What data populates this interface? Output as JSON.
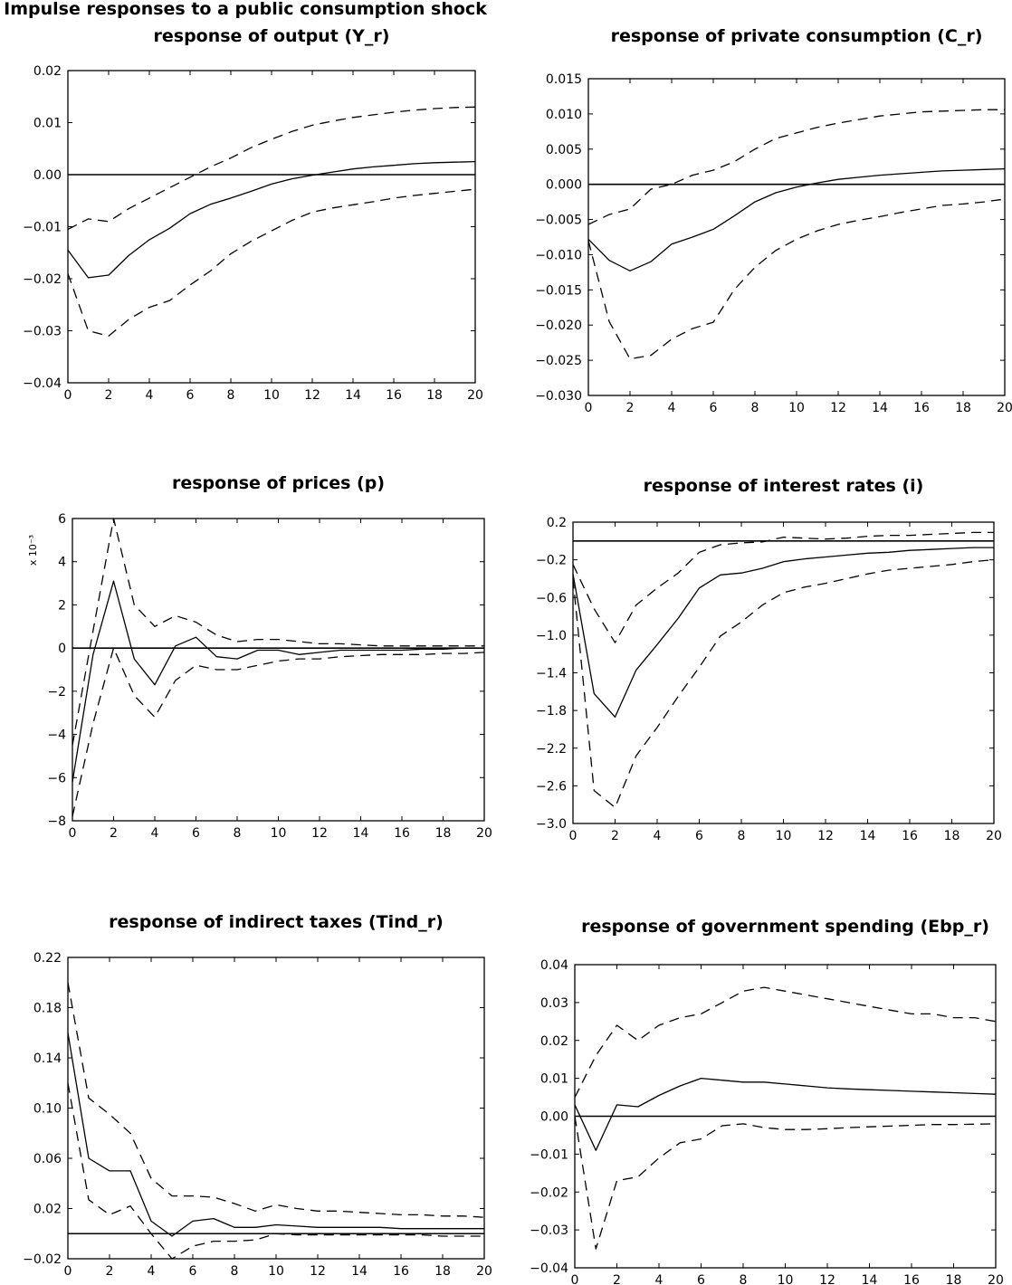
{
  "header_partial": "Impulse responses to a public consumption shock",
  "chart_data": [
    {
      "type": "line",
      "title": "response of output (Y_r)",
      "x": [
        0,
        1,
        2,
        3,
        4,
        5,
        6,
        7,
        8,
        9,
        10,
        11,
        12,
        13,
        14,
        15,
        16,
        17,
        18,
        19,
        20
      ],
      "xticks": [
        0,
        2,
        4,
        6,
        8,
        10,
        12,
        14,
        16,
        18,
        20
      ],
      "xlim": [
        0,
        20
      ],
      "ylim": [
        -0.04,
        0.02
      ],
      "yticks": [
        0.02,
        0.01,
        0.0,
        -0.01,
        -0.02,
        -0.03,
        -0.04
      ],
      "ytick_labels": [
        "0.02",
        "0.01",
        "0.00",
        "−0.01",
        "−0.02",
        "−0.03",
        "−0.04"
      ],
      "multiplier": "",
      "zero_line": 0,
      "series": [
        {
          "style": "solid",
          "values": [
            -0.0145,
            -0.0198,
            -0.0193,
            -0.0155,
            -0.0125,
            -0.0103,
            -0.0075,
            -0.0057,
            -0.0045,
            -0.0032,
            -0.0018,
            -0.0008,
            -0.0001,
            0.0005,
            0.0011,
            0.0015,
            0.0018,
            0.0021,
            0.0023,
            0.0024,
            0.0025
          ]
        },
        {
          "style": "dashed",
          "values": [
            -0.0105,
            -0.0085,
            -0.009,
            -0.0065,
            -0.0045,
            -0.0025,
            -0.0005,
            0.0015,
            0.0032,
            0.0052,
            0.0068,
            0.0083,
            0.0095,
            0.0103,
            0.011,
            0.0115,
            0.012,
            0.0124,
            0.0127,
            0.0129,
            0.013
          ]
        },
        {
          "style": "dashed",
          "values": [
            -0.019,
            -0.03,
            -0.031,
            -0.0278,
            -0.0255,
            -0.0242,
            -0.0212,
            -0.0185,
            -0.0152,
            -0.0128,
            -0.0108,
            -0.0088,
            -0.0072,
            -0.0064,
            -0.0058,
            -0.0052,
            -0.0045,
            -0.004,
            -0.0036,
            -0.0032,
            -0.0028
          ]
        }
      ]
    },
    {
      "type": "line",
      "title": "response of private consumption (C_r)",
      "x": [
        0,
        1,
        2,
        3,
        4,
        5,
        6,
        7,
        8,
        9,
        10,
        11,
        12,
        13,
        14,
        15,
        16,
        17,
        18,
        19,
        20
      ],
      "xticks": [
        0,
        2,
        4,
        6,
        8,
        10,
        12,
        14,
        16,
        18,
        20
      ],
      "xlim": [
        0,
        20
      ],
      "ylim": [
        -0.03,
        0.015
      ],
      "yticks": [
        0.015,
        0.01,
        0.005,
        0.0,
        -0.005,
        -0.01,
        -0.015,
        -0.02,
        -0.025,
        -0.03
      ],
      "ytick_labels": [
        "0.015",
        "0.010",
        "0.005",
        "0.000",
        "−0.005",
        "−0.010",
        "−0.015",
        "−0.020",
        "−0.025",
        "−0.030"
      ],
      "multiplier": "",
      "zero_line": 0,
      "series": [
        {
          "style": "solid",
          "values": [
            -0.0078,
            -0.0108,
            -0.0123,
            -0.011,
            -0.0085,
            -0.0075,
            -0.0064,
            -0.0045,
            -0.0025,
            -0.0012,
            -0.0004,
            0.0002,
            0.0007,
            0.001,
            0.0013,
            0.0015,
            0.0017,
            0.0019,
            0.002,
            0.0021,
            0.0022
          ]
        },
        {
          "style": "dashed",
          "values": [
            -0.0057,
            -0.0043,
            -0.0035,
            -0.0007,
            0.0,
            0.0013,
            0.002,
            0.0032,
            0.005,
            0.0065,
            0.0073,
            0.0081,
            0.0087,
            0.0092,
            0.0097,
            0.01,
            0.0103,
            0.0104,
            0.0105,
            0.0106,
            0.0106
          ]
        },
        {
          "style": "dashed",
          "values": [
            -0.008,
            -0.0195,
            -0.0248,
            -0.0243,
            -0.022,
            -0.0205,
            -0.0196,
            -0.015,
            -0.0118,
            -0.0094,
            -0.0078,
            -0.0066,
            -0.0057,
            -0.0051,
            -0.0046,
            -0.004,
            -0.0035,
            -0.003,
            -0.0028,
            -0.0025,
            -0.0021
          ]
        }
      ]
    },
    {
      "type": "line",
      "title": "response of prices (p)",
      "x": [
        0,
        1,
        2,
        3,
        4,
        5,
        6,
        7,
        8,
        9,
        10,
        11,
        12,
        13,
        14,
        15,
        16,
        17,
        18,
        19,
        20
      ],
      "xticks": [
        0,
        2,
        4,
        6,
        8,
        10,
        12,
        14,
        16,
        18,
        20
      ],
      "xlim": [
        0,
        20
      ],
      "ylim": [
        -8,
        6
      ],
      "yticks": [
        6,
        4,
        2,
        0,
        -2,
        -4,
        -6,
        -8
      ],
      "ytick_labels": [
        "6",
        "4",
        "2",
        "0",
        "−2",
        "−4",
        "−6",
        "−8"
      ],
      "multiplier": "x 10⁻³",
      "zero_line": 0,
      "series": [
        {
          "style": "solid",
          "values": [
            -6.2,
            -0.3,
            3.1,
            -0.5,
            -1.7,
            0.1,
            0.5,
            -0.4,
            -0.5,
            -0.1,
            -0.1,
            -0.3,
            -0.2,
            -0.1,
            -0.1,
            -0.1,
            -0.1,
            -0.05,
            -0.05,
            0.0,
            0.0
          ]
        },
        {
          "style": "dashed",
          "values": [
            -4.5,
            0.8,
            6.0,
            2.0,
            1.0,
            1.5,
            1.2,
            0.6,
            0.3,
            0.4,
            0.4,
            0.3,
            0.2,
            0.2,
            0.15,
            0.1,
            0.1,
            0.1,
            0.1,
            0.1,
            0.1
          ]
        },
        {
          "style": "dashed",
          "values": [
            -7.8,
            -3.5,
            0.0,
            -2.2,
            -3.2,
            -1.5,
            -0.8,
            -1.0,
            -1.0,
            -0.8,
            -0.6,
            -0.5,
            -0.5,
            -0.4,
            -0.35,
            -0.3,
            -0.3,
            -0.3,
            -0.25,
            -0.25,
            -0.2
          ]
        }
      ]
    },
    {
      "type": "line",
      "title": "response of interest rates (i)",
      "x": [
        0,
        1,
        2,
        3,
        4,
        5,
        6,
        7,
        8,
        9,
        10,
        11,
        12,
        13,
        14,
        15,
        16,
        17,
        18,
        19,
        20
      ],
      "xticks": [
        0,
        2,
        4,
        6,
        8,
        10,
        12,
        14,
        16,
        18,
        20
      ],
      "xlim": [
        0,
        20
      ],
      "ylim": [
        -3.0,
        0.2
      ],
      "yticks": [
        0.2,
        -0.2,
        -0.6,
        -1.0,
        -1.4,
        -1.8,
        -2.2,
        -2.6,
        -3.0
      ],
      "ytick_labels": [
        "0.2",
        "−0.2",
        "−0.6",
        "−1.0",
        "−1.4",
        "−1.8",
        "−2.2",
        "−2.6",
        "−3.0"
      ],
      "multiplier": "",
      "zero_line": 0,
      "series": [
        {
          "style": "solid",
          "values": [
            -0.35,
            -1.62,
            -1.87,
            -1.37,
            -1.1,
            -0.82,
            -0.5,
            -0.36,
            -0.34,
            -0.29,
            -0.22,
            -0.19,
            -0.17,
            -0.15,
            -0.13,
            -0.12,
            -0.1,
            -0.09,
            -0.08,
            -0.07,
            -0.07
          ]
        },
        {
          "style": "dashed",
          "values": [
            -0.25,
            -0.72,
            -1.08,
            -0.68,
            -0.5,
            -0.34,
            -0.12,
            -0.04,
            -0.02,
            -0.01,
            0.04,
            0.03,
            0.02,
            0.03,
            0.05,
            0.06,
            0.06,
            0.07,
            0.08,
            0.09,
            0.09
          ]
        },
        {
          "style": "dashed",
          "values": [
            -0.4,
            -2.65,
            -2.83,
            -2.28,
            -1.98,
            -1.65,
            -1.34,
            -1.01,
            -0.86,
            -0.68,
            -0.55,
            -0.49,
            -0.45,
            -0.4,
            -0.35,
            -0.31,
            -0.29,
            -0.27,
            -0.25,
            -0.22,
            -0.2
          ]
        }
      ]
    },
    {
      "type": "line",
      "title": "response of indirect taxes (Tind_r)",
      "x": [
        0,
        1,
        2,
        3,
        4,
        5,
        6,
        7,
        8,
        9,
        10,
        11,
        12,
        13,
        14,
        15,
        16,
        17,
        18,
        19,
        20
      ],
      "xticks": [
        0,
        2,
        4,
        6,
        8,
        10,
        12,
        14,
        16,
        18,
        20
      ],
      "xlim": [
        0,
        20
      ],
      "ylim": [
        -0.02,
        0.22
      ],
      "yticks": [
        0.22,
        0.18,
        0.14,
        0.1,
        0.06,
        0.02,
        -0.02
      ],
      "ytick_labels": [
        "0.22",
        "0.18",
        "0.14",
        "0.10",
        "0.06",
        "0.02",
        "−0.02"
      ],
      "multiplier": "",
      "zero_line": 0,
      "series": [
        {
          "style": "solid",
          "values": [
            0.16,
            0.06,
            0.05,
            0.05,
            0.01,
            -0.002,
            0.01,
            0.012,
            0.005,
            0.005,
            0.007,
            0.006,
            0.005,
            0.005,
            0.005,
            0.005,
            0.004,
            0.004,
            0.004,
            0.004,
            0.004
          ]
        },
        {
          "style": "dashed",
          "values": [
            0.2,
            0.108,
            0.095,
            0.08,
            0.044,
            0.03,
            0.03,
            0.029,
            0.024,
            0.018,
            0.023,
            0.02,
            0.018,
            0.018,
            0.017,
            0.016,
            0.015,
            0.015,
            0.014,
            0.014,
            0.013
          ]
        },
        {
          "style": "dashed",
          "values": [
            0.12,
            0.027,
            0.015,
            0.022,
            0.0,
            -0.02,
            -0.01,
            -0.006,
            -0.006,
            -0.005,
            0.0,
            -0.001,
            -0.001,
            -0.001,
            -0.001,
            -0.001,
            -0.001,
            -0.001,
            -0.002,
            -0.002,
            -0.002
          ]
        }
      ]
    },
    {
      "type": "line",
      "title": "response of government spending (Ebp_r)",
      "x": [
        0,
        1,
        2,
        3,
        4,
        5,
        6,
        7,
        8,
        9,
        10,
        11,
        12,
        13,
        14,
        15,
        16,
        17,
        18,
        19,
        20
      ],
      "xticks": [
        0,
        2,
        4,
        6,
        8,
        10,
        12,
        14,
        16,
        18,
        20
      ],
      "xlim": [
        0,
        20
      ],
      "ylim": [
        -0.04,
        0.04
      ],
      "yticks": [
        0.04,
        0.03,
        0.02,
        0.01,
        0.0,
        -0.01,
        -0.02,
        -0.03,
        -0.04
      ],
      "ytick_labels": [
        "0.04",
        "0.03",
        "0.02",
        "0.01",
        "0.00",
        "−0.01",
        "−0.02",
        "−0.03",
        "−0.04"
      ],
      "multiplier": "",
      "zero_line": 0,
      "series": [
        {
          "style": "solid",
          "values": [
            0.003,
            -0.009,
            0.003,
            0.0025,
            0.0055,
            0.008,
            0.01,
            0.0095,
            0.009,
            0.009,
            0.0085,
            0.008,
            0.0075,
            0.0072,
            0.007,
            0.0068,
            0.0066,
            0.0064,
            0.0062,
            0.006,
            0.0058
          ]
        },
        {
          "style": "dashed",
          "values": [
            0.005,
            0.016,
            0.024,
            0.02,
            0.024,
            0.026,
            0.027,
            0.03,
            0.033,
            0.034,
            0.033,
            0.032,
            0.031,
            0.03,
            0.029,
            0.028,
            0.027,
            0.027,
            0.026,
            0.026,
            0.025
          ]
        },
        {
          "style": "dashed",
          "values": [
            0.0,
            -0.035,
            -0.017,
            -0.016,
            -0.011,
            -0.007,
            -0.006,
            -0.0025,
            -0.002,
            -0.003,
            -0.0035,
            -0.0035,
            -0.0033,
            -0.003,
            -0.0028,
            -0.0026,
            -0.0024,
            -0.0022,
            -0.0022,
            -0.0021,
            -0.002
          ]
        }
      ]
    }
  ]
}
